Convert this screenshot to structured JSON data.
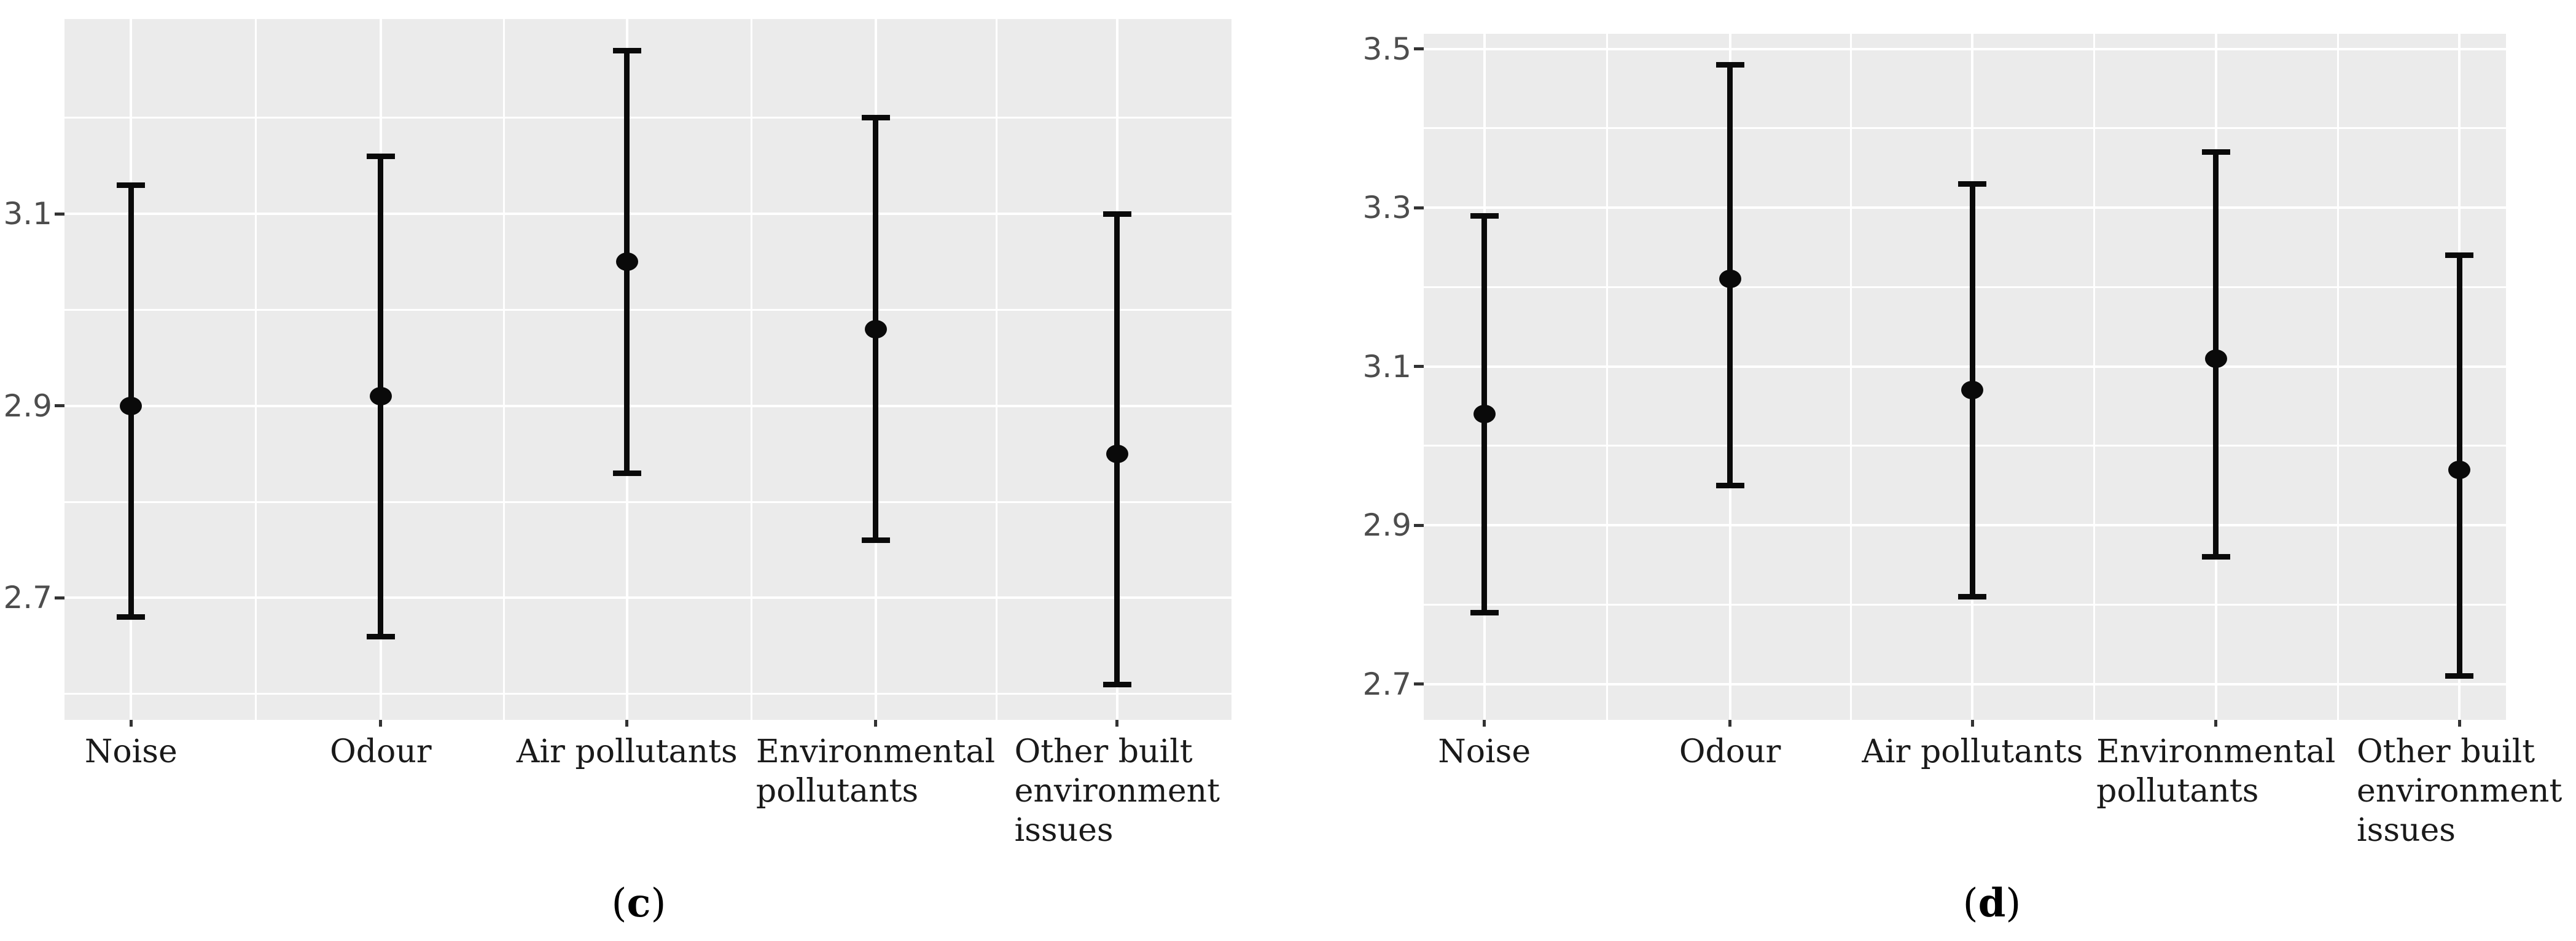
{
  "figure": {
    "background": "#ffffff",
    "captions": [
      {
        "chart": "c",
        "prefix": "(",
        "letter": "c",
        "suffix": ")"
      },
      {
        "chart": "d",
        "prefix": "(",
        "letter": "d",
        "suffix": ")"
      }
    ]
  },
  "colors": {
    "panel_background": "#ebebeb",
    "gridline": "#ffffff",
    "data_point": "#0a0a0a",
    "tick_mark": "#333333",
    "axis_number_text": "#4d4d4d",
    "category_label_text": "#1a1a1a"
  },
  "chart_data": [
    {
      "id": "c",
      "type": "scatter",
      "subtype": "point-estimate-with-error-bars",
      "caption": "(c)",
      "title": "",
      "xlabel": "",
      "ylabel": "",
      "legend": "none",
      "grid": "on",
      "categories": [
        "Noise",
        "Odour",
        "Air pollutants",
        "Environmental\npollutants",
        "Other built\nenvironment\nissues"
      ],
      "series": [
        {
          "name": "mean",
          "values": [
            2.9,
            2.91,
            3.05,
            2.98,
            2.85
          ]
        },
        {
          "name": "ci_lower",
          "values": [
            2.68,
            2.66,
            2.83,
            2.76,
            2.61
          ]
        },
        {
          "name": "ci_upper",
          "values": [
            3.13,
            3.16,
            3.27,
            3.2,
            3.1
          ]
        }
      ],
      "yticks": [
        2.7,
        2.9,
        3.1
      ],
      "yminor": [
        2.6,
        2.8,
        3.0,
        3.2
      ],
      "ylim": [
        2.573,
        3.303
      ]
    },
    {
      "id": "d",
      "type": "scatter",
      "subtype": "point-estimate-with-error-bars",
      "caption": "(d)",
      "title": "",
      "xlabel": "",
      "ylabel": "",
      "legend": "none",
      "grid": "on",
      "categories": [
        "Noise",
        "Odour",
        "Air pollutants",
        "Environmental\npollutants",
        "Other built\nenvironment\nissues"
      ],
      "series": [
        {
          "name": "mean",
          "values": [
            3.04,
            3.21,
            3.07,
            3.11,
            2.97
          ]
        },
        {
          "name": "ci_lower",
          "values": [
            2.79,
            2.95,
            2.81,
            2.86,
            2.71
          ]
        },
        {
          "name": "ci_upper",
          "values": [
            3.29,
            3.48,
            3.33,
            3.37,
            3.24
          ]
        }
      ],
      "yticks": [
        2.7,
        2.9,
        3.1,
        3.3,
        3.5
      ],
      "yminor": [
        2.8,
        3.0,
        3.2,
        3.4
      ],
      "ylim": [
        2.655,
        3.519
      ]
    }
  ]
}
